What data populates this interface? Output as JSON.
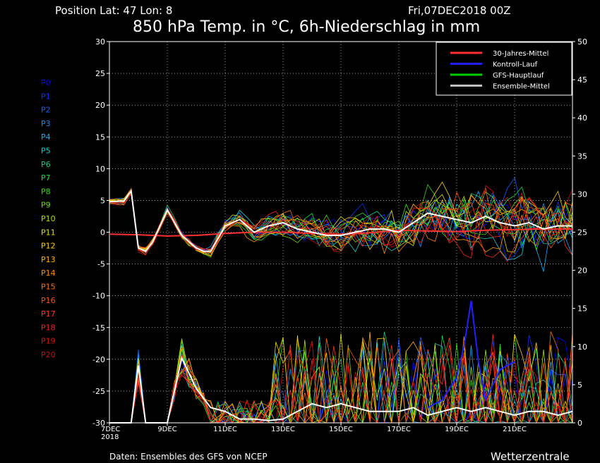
{
  "header": {
    "position": "Position   Lat: 47 Lon: 8",
    "run": "Fri,07DEC2018 00Z"
  },
  "footer": {
    "source": "Daten: Ensembles des GFS von NCEP",
    "brand": "Wetterzentrale"
  },
  "members": [
    "P0",
    "P1",
    "P2",
    "P3",
    "P4",
    "P5",
    "P6",
    "P7",
    "P8",
    "P9",
    "P10",
    "P11",
    "P12",
    "P13",
    "P14",
    "P15",
    "P16",
    "P17",
    "P18",
    "P19",
    "P20"
  ],
  "member_colors": [
    "#0000ff",
    "#1030ff",
    "#1060ff",
    "#1090ff",
    "#10b0ff",
    "#10d0d0",
    "#10d080",
    "#10e040",
    "#30e010",
    "#70e000",
    "#b0e000",
    "#e0e000",
    "#ffd000",
    "#ffb000",
    "#ff9000",
    "#ff7000",
    "#ff5000",
    "#ff3020",
    "#ff2020",
    "#e01010",
    "#c01010"
  ],
  "chart_data": {
    "type": "line",
    "title": "850 hPa Temp. in °C, 6h-Niederschlag in mm",
    "xlabel": "",
    "ylabel": "",
    "y_left": {
      "lim": [
        -30,
        30
      ],
      "ticks": [
        30,
        25,
        20,
        15,
        10,
        5,
        0,
        -5,
        -10,
        -15,
        -20,
        -25,
        -30
      ]
    },
    "y_right": {
      "lim": [
        0,
        50
      ],
      "ticks": [
        50,
        45,
        40,
        35,
        30,
        25,
        20,
        15,
        10,
        5,
        0
      ]
    },
    "x_ticks": [
      "7DEC\n2018",
      "9DEC",
      "11DEC",
      "13DEC",
      "15DEC",
      "17DEC",
      "19DEC",
      "21DEC"
    ],
    "x_range_days": [
      0,
      16
    ],
    "grid": true,
    "legend_position": "top-right",
    "legend": [
      {
        "label": "30-Jahres-Mittel",
        "color": "#ff3030"
      },
      {
        "label": "Kontroll-Lauf",
        "color": "#2020ff"
      },
      {
        "label": "GFS-Hauptlauf",
        "color": "#00d000"
      },
      {
        "label": "Ensemble-Mittel",
        "color": "#c0c0c0"
      }
    ],
    "temperature_series": [
      {
        "name": "30-Jahres-Mittel",
        "x_days": [
          0,
          1,
          2,
          3,
          4,
          5,
          6,
          7,
          8,
          9,
          10,
          11,
          12,
          13,
          14,
          15,
          16
        ],
        "values": [
          -0.3,
          -0.4,
          -0.6,
          -0.5,
          -0.2,
          0.0,
          0.0,
          -0.2,
          -0.3,
          -0.1,
          0.3,
          0.2,
          0.1,
          0.3,
          0.4,
          0.5,
          0.5
        ]
      },
      {
        "name": "Ensemble-Mittel",
        "x_days": [
          0,
          0.5,
          0.75,
          1,
          1.25,
          1.5,
          2,
          2.25,
          2.5,
          3,
          3.25,
          3.5,
          4,
          4.5,
          5,
          5.5,
          6,
          6.5,
          7,
          7.5,
          8,
          8.5,
          9,
          9.5,
          10,
          10.5,
          11,
          11.5,
          12,
          12.5,
          13,
          13.5,
          14,
          14.5,
          15,
          15.5,
          16
        ],
        "values": [
          4.8,
          4.9,
          6.5,
          -2.5,
          -3.0,
          -1.5,
          3.5,
          1.5,
          -0.5,
          -2.5,
          -3.0,
          -3.0,
          1.0,
          2.0,
          0.0,
          1.0,
          1.5,
          0.5,
          0.0,
          -0.5,
          -0.5,
          0.0,
          0.5,
          0.5,
          0.0,
          1.5,
          3.0,
          2.5,
          2.0,
          1.5,
          2.5,
          1.5,
          1.0,
          1.5,
          0.5,
          1.0,
          1.0
        ]
      }
    ],
    "precipitation_series": [
      {
        "name": "Ensemble-Mittel",
        "x_days": [
          0,
          0.5,
          0.75,
          1,
          1.25,
          1.5,
          2,
          2.5,
          3,
          3.5,
          4,
          4.5,
          5,
          5.5,
          6,
          6.5,
          7,
          7.5,
          8,
          8.5,
          9,
          9.5,
          10,
          10.5,
          11,
          11.5,
          12,
          12.5,
          13,
          13.5,
          14,
          14.5,
          15,
          15.5,
          16
        ],
        "values": [
          0,
          0,
          0,
          7.5,
          0,
          0,
          0,
          8.5,
          4.5,
          2.0,
          1.5,
          0.5,
          0.5,
          0.3,
          0.5,
          1.5,
          2.5,
          2.0,
          2.5,
          2.0,
          1.5,
          1.5,
          1.5,
          2.0,
          1.0,
          1.5,
          2.0,
          1.5,
          2.0,
          1.5,
          1.0,
          1.5,
          1.5,
          1.0,
          1.5
        ]
      },
      {
        "name": "Kontroll-Lauf",
        "x_days": [
          11,
          11.5,
          12,
          12.25,
          12.5,
          12.75,
          13,
          13.5,
          14
        ],
        "values": [
          2,
          3,
          6,
          10,
          16,
          8,
          3,
          7,
          8
        ]
      }
    ]
  }
}
